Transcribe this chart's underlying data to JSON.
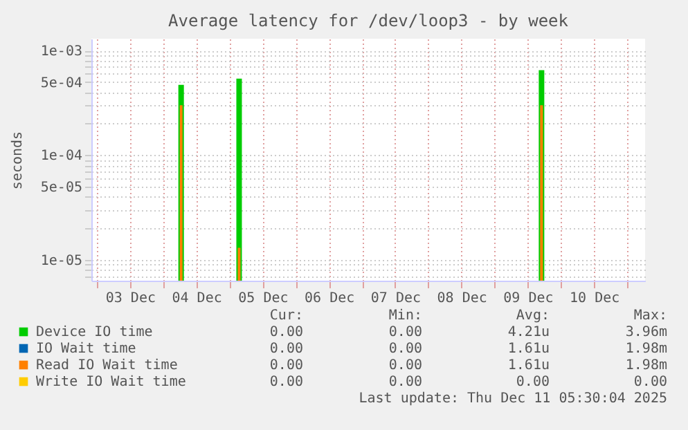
{
  "chart_data": {
    "type": "bar",
    "title": "Average latency for /dev/loop3 - by week",
    "ylabel": "seconds",
    "x": [
      "2025-12-04T06:30",
      "2025-12-05T03:30",
      "2025-12-09T17:00"
    ],
    "series": [
      {
        "name": "Device IO time",
        "color": "#00cc00",
        "values": [
          0.00047,
          0.00054,
          0.00065
        ]
      },
      {
        "name": "IO Wait time",
        "color": "#0066b3",
        "values": [
          null,
          null,
          null
        ]
      },
      {
        "name": "Read IO Wait time",
        "color": "#ff8000",
        "values": [
          0.0003,
          1.3e-05,
          0.0003
        ]
      },
      {
        "name": "Write IO Wait time",
        "color": "#ffcc00",
        "values": [
          null,
          null,
          null
        ]
      }
    ],
    "log": true,
    "ylim": [
      6.3e-06,
      0.0013
    ],
    "yticks": [
      {
        "value": 0.001,
        "label": "1e-03"
      },
      {
        "value": 0.0005,
        "label": "5e-04"
      },
      {
        "value": 0.0001,
        "label": "1e-04"
      },
      {
        "value": 5e-05,
        "label": "5e-05"
      },
      {
        "value": 1e-05,
        "label": "1e-05"
      },
      {
        "value": 7e-06,
        "label": null
      },
      {
        "value": 8e-06,
        "label": null
      },
      {
        "value": 9e-06,
        "label": null
      },
      {
        "value": 2e-05,
        "label": null
      },
      {
        "value": 3e-05,
        "label": null
      },
      {
        "value": 4e-05,
        "label": null
      },
      {
        "value": 6e-05,
        "label": null
      },
      {
        "value": 7e-05,
        "label": null
      },
      {
        "value": 8e-05,
        "label": null
      },
      {
        "value": 9e-05,
        "label": null
      },
      {
        "value": 0.0002,
        "label": null
      },
      {
        "value": 0.0003,
        "label": null
      },
      {
        "value": 0.0004,
        "label": null
      },
      {
        "value": 0.0006,
        "label": null
      },
      {
        "value": 0.0007,
        "label": null
      },
      {
        "value": 0.0008,
        "label": null
      },
      {
        "value": 0.0009,
        "label": null
      }
    ],
    "xlim": [
      "2025-12-02T22:00",
      "2025-12-11T06:30"
    ],
    "xticks": [
      {
        "value": "2025-12-03T12:00",
        "label": "03 Dec"
      },
      {
        "value": "2025-12-04T12:00",
        "label": "04 Dec"
      },
      {
        "value": "2025-12-05T12:00",
        "label": "05 Dec"
      },
      {
        "value": "2025-12-06T12:00",
        "label": "06 Dec"
      },
      {
        "value": "2025-12-07T12:00",
        "label": "07 Dec"
      },
      {
        "value": "2025-12-08T12:00",
        "label": "08 Dec"
      },
      {
        "value": "2025-12-09T12:00",
        "label": "09 Dec"
      },
      {
        "value": "2025-12-10T12:00",
        "label": "10 Dec"
      },
      {
        "value": "2025-12-03",
        "label": null
      },
      {
        "value": "2025-12-04",
        "label": null
      },
      {
        "value": "2025-12-05",
        "label": null
      },
      {
        "value": "2025-12-06",
        "label": null
      },
      {
        "value": "2025-12-07",
        "label": null
      },
      {
        "value": "2025-12-08",
        "label": null
      },
      {
        "value": "2025-12-09",
        "label": null
      },
      {
        "value": "2025-12-10",
        "label": null
      },
      {
        "value": "2025-12-11",
        "label": null
      }
    ],
    "grid": true,
    "legend": "bottom",
    "annotations": [
      "Cur:",
      "Min:",
      "Avg:",
      "Max:",
      "0.00",
      "0.00",
      "4.21u",
      "3.96m",
      "0.00",
      "0.00",
      "1.61u",
      "1.98m",
      "0.00",
      "0.00",
      "1.61u",
      "1.98m",
      "0.00",
      "0.00",
      "0.00",
      "0.00",
      "Last update: Thu Dec 11 05:30:04 2025"
    ]
  }
}
